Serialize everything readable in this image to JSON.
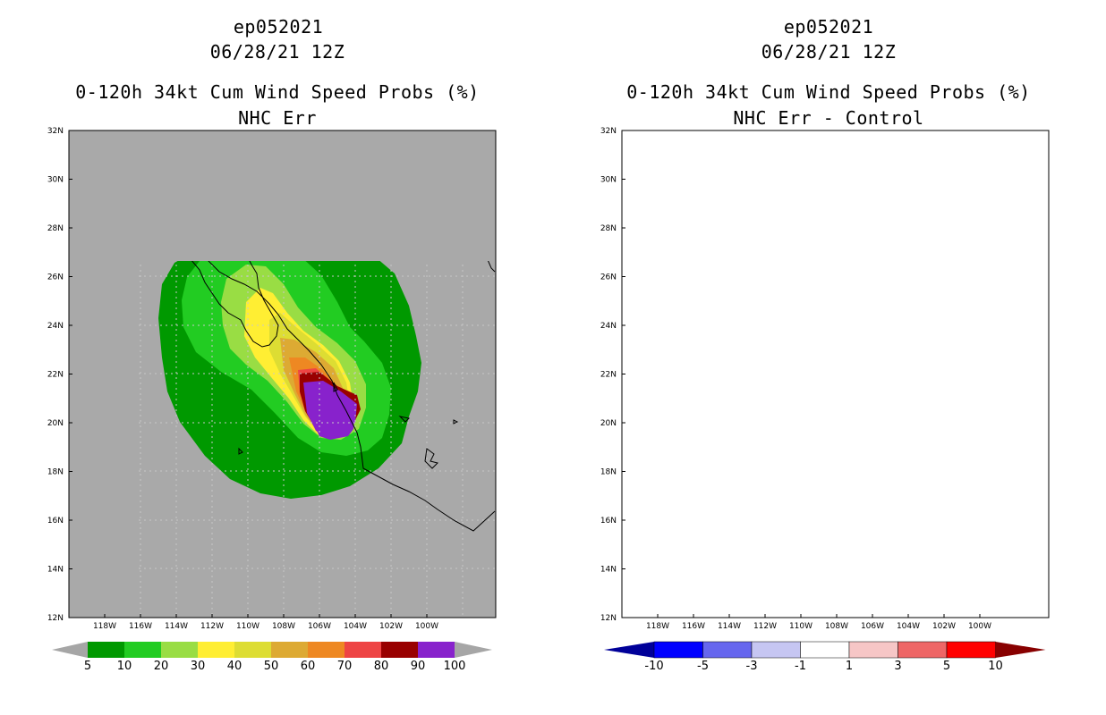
{
  "left_panel": {
    "title_line1": "ep052021",
    "title_line2": "06/28/21 12Z",
    "title_line3": "0-120h 34kt Cum Wind Speed Probs (%)",
    "title_line4": "NHC Err",
    "colorbar": {
      "colors": [
        "#009900",
        "#22cc22",
        "#99dd44",
        "#ffee33",
        "#dddd33",
        "#ddaa33",
        "#ee8822",
        "#ee4444",
        "#990000",
        "#8822cc"
      ],
      "labels": [
        "5",
        "10",
        "20",
        "30",
        "40",
        "50",
        "60",
        "70",
        "80",
        "90",
        "100"
      ],
      "arrow_color": "#a6a6a6"
    },
    "background_color": "#a9a9a9"
  },
  "right_panel": {
    "title_line1": "ep052021",
    "title_line2": "06/28/21 12Z",
    "title_line3": "0-120h 34kt Cum Wind Speed Probs (%)",
    "title_line4": "NHC Err - Control",
    "colorbar": {
      "colors": [
        "#0000ff",
        "#6666ee",
        "#c6c6f2",
        "#ffffff",
        "#f6c6c6",
        "#ee6666",
        "#ff0000"
      ],
      "labels": [
        "-10",
        "-5",
        "-3",
        "-1",
        "1",
        "3",
        "5",
        "10"
      ],
      "arrow_left_color": "#000099",
      "arrow_right_color": "#880000"
    },
    "background_color": "#ffffff"
  },
  "axes": {
    "lat_labels": [
      "32N",
      "30N",
      "28N",
      "26N",
      "24N",
      "22N",
      "20N",
      "18N",
      "16N",
      "14N",
      "12N"
    ],
    "lon_labels": [
      "118W",
      "116W",
      "114W",
      "112W",
      "110W",
      "108W",
      "106W",
      "104W",
      "102W",
      "100W"
    ]
  }
}
